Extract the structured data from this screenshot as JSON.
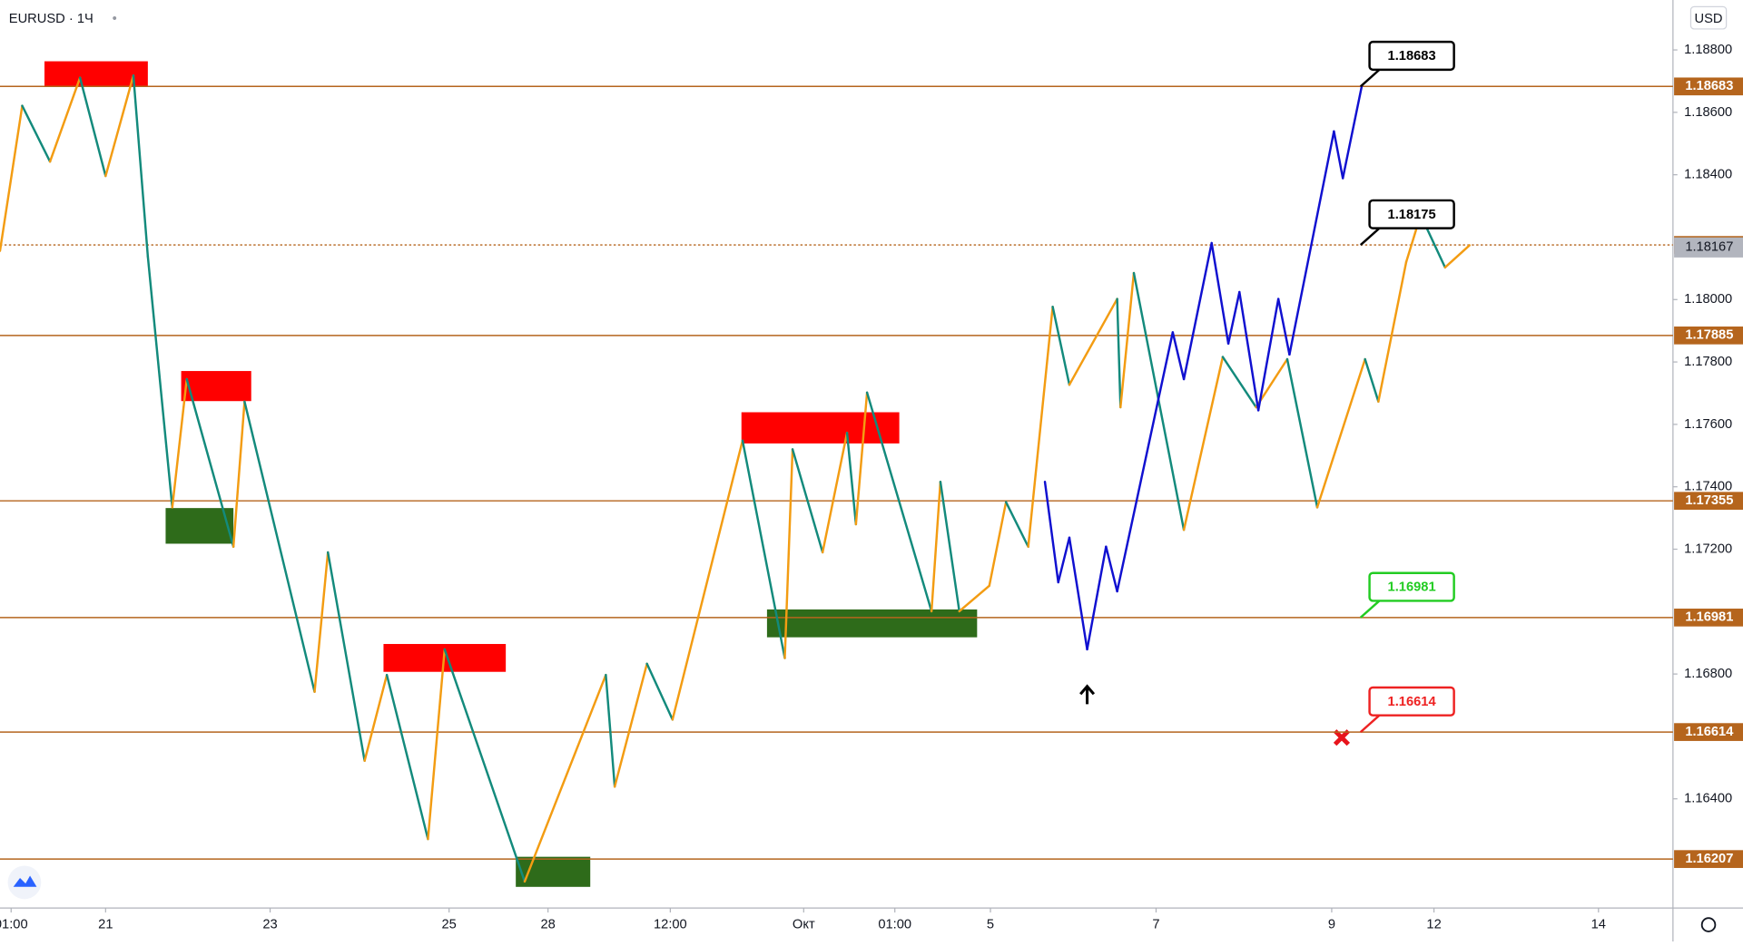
{
  "chart_data": {
    "type": "line",
    "title": "EURUSD · 1Ч",
    "currency": "USD",
    "xlim": [
      0,
      1505
    ],
    "ylim": [
      1.1605,
      1.1896
    ],
    "xticks": [
      {
        "value": 10,
        "label": "01:00"
      },
      {
        "value": 95,
        "label": "21"
      },
      {
        "value": 243,
        "label": "23"
      },
      {
        "value": 404,
        "label": "25"
      },
      {
        "value": 493,
        "label": "28"
      },
      {
        "value": 603,
        "label": "12:00"
      },
      {
        "value": 723,
        "label": "Окт"
      },
      {
        "value": 805,
        "label": "01:00"
      },
      {
        "value": 891,
        "label": "5"
      },
      {
        "value": 1040,
        "label": "7"
      },
      {
        "value": 1198,
        "label": "9"
      },
      {
        "value": 1290,
        "label": "12"
      },
      {
        "value": 1438,
        "label": "14"
      }
    ],
    "yticks": [
      {
        "value": 1.188,
        "label": "1.18800"
      },
      {
        "value": 1.186,
        "label": "1.18600"
      },
      {
        "value": 1.184,
        "label": "1.18400"
      },
      {
        "value": 1.18,
        "label": "1.18000"
      },
      {
        "value": 1.178,
        "label": "1.17800"
      },
      {
        "value": 1.176,
        "label": "1.17600"
      },
      {
        "value": 1.174,
        "label": "1.17400"
      },
      {
        "value": 1.172,
        "label": "1.17200"
      },
      {
        "value": 1.168,
        "label": "1.16800"
      },
      {
        "value": 1.164,
        "label": "1.16400"
      }
    ],
    "series": [
      {
        "color": "#f39c12",
        "down_color": "#138a7c",
        "x": [
          0,
          20,
          45,
          72,
          95,
          120,
          133,
          155,
          168,
          210,
          220,
          283,
          295,
          328,
          348,
          385,
          400,
          472,
          545,
          553,
          582,
          605,
          668,
          706,
          713,
          740,
          762,
          770,
          780,
          838,
          846,
          863,
          890,
          905,
          925,
          947,
          962,
          1005,
          1008,
          1020,
          1065,
          1100,
          1130,
          1158,
          1185,
          1228,
          1240,
          1265,
          1278,
          1300,
          1322
        ],
        "values": [
          1.18156,
          1.18621,
          1.18442,
          1.18711,
          1.18396,
          1.18718,
          1.18138,
          1.17334,
          1.17745,
          1.17208,
          1.17673,
          1.16743,
          1.1719,
          1.16522,
          1.16797,
          1.16271,
          1.16879,
          1.16135,
          1.16797,
          1.16439,
          1.16833,
          1.16654,
          1.17548,
          1.16851,
          1.1752,
          1.1719,
          1.17573,
          1.1728,
          1.17702,
          1.17001,
          1.17416,
          1.17001,
          1.17083,
          1.17351,
          1.17208,
          1.17977,
          1.17727,
          1.18002,
          1.17655,
          1.18085,
          1.17262,
          1.17816,
          1.17655,
          1.17809,
          1.17334,
          1.17809,
          1.17673,
          1.1812,
          1.18271,
          1.18103,
          1.18174
        ]
      },
      {
        "color": "#1010d0",
        "x": [
          940,
          952,
          962,
          978,
          995,
          1005,
          1055,
          1065,
          1090,
          1105,
          1115,
          1132,
          1150,
          1160,
          1200,
          1208,
          1225
        ],
        "values": [
          1.17416,
          1.17094,
          1.17237,
          1.16879,
          1.17208,
          1.17065,
          1.17895,
          1.17745,
          1.18181,
          1.17859,
          1.18024,
          1.17645,
          1.18002,
          1.17824,
          1.18539,
          1.18389,
          1.18683
        ]
      }
    ],
    "levels": [
      {
        "value": 1.18683,
        "callout": "#000000"
      },
      {
        "value": 1.18175,
        "callout": "#000000",
        "dotted": true
      },
      {
        "value": 1.17885
      },
      {
        "value": 1.17355
      },
      {
        "value": 1.16981,
        "callout": "#22cc22"
      },
      {
        "value": 1.16614,
        "callout": "#ee2222"
      },
      {
        "value": 1.16207
      }
    ],
    "level_color": "#b5651d",
    "last_price": 1.18167
  }
}
